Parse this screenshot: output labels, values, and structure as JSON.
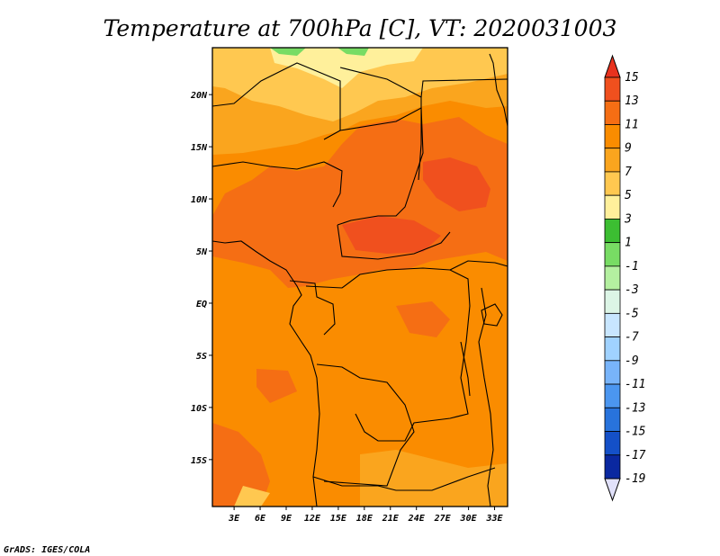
{
  "chart_data": {
    "type": "heatmap",
    "title": "Temperature at 700hPa [C], VT: 2020031003",
    "x_ticks": [
      "3E",
      "6E",
      "9E",
      "12E",
      "15E",
      "18E",
      "21E",
      "24E",
      "27E",
      "30E",
      "33E"
    ],
    "x_tick_values": [
      3,
      6,
      9,
      12,
      15,
      18,
      21,
      24,
      27,
      30,
      33
    ],
    "y_ticks": [
      "20N",
      "15N",
      "10N",
      "5N",
      "EQ",
      "5S",
      "10S",
      "15S"
    ],
    "y_tick_values": [
      20,
      15,
      10,
      5,
      0,
      -5,
      -10,
      -15
    ],
    "xlim": [
      0.5,
      34.5
    ],
    "ylim": [
      -19.5,
      24.5
    ],
    "colorbar": {
      "levels": [
        "15",
        "13",
        "11",
        "9",
        "7",
        "5",
        "3",
        "1",
        "-1",
        "-3",
        "-5",
        "-7",
        "-9",
        "-11",
        "-13",
        "-15",
        "-17",
        "-19"
      ],
      "colors": [
        "#e8321e",
        "#f0501e",
        "#f56e14",
        "#fa8c00",
        "#faa51e",
        "#ffc850",
        "#fff09b",
        "#3cbe32",
        "#78dc64",
        "#b4f0a0",
        "#dcf5e6",
        "#c8e6ff",
        "#a0d2ff",
        "#78b4fa",
        "#4b96f0",
        "#2873dc",
        "#1450c8",
        "#0a28a0",
        "#0a0a6e"
      ],
      "top_arrow_color": "#e8321e",
      "bottom_arrow_color": "#e1e1fa"
    },
    "field_regions": [
      {
        "level": "5 to 7",
        "area": "northern Sahara band 20N-24N"
      },
      {
        "level": "3 to 5",
        "area": "small patches near 24N 8E-16E"
      },
      {
        "level": "11 to 13",
        "area": "Sahel and central Africa 3N-17N"
      },
      {
        "level": "9 to 11",
        "area": "equatorial Africa and southern Africa"
      },
      {
        "level": "11 to 13",
        "area": "southwest coast 15S-19S"
      }
    ]
  },
  "credit": "GrADS: IGES/COLA"
}
